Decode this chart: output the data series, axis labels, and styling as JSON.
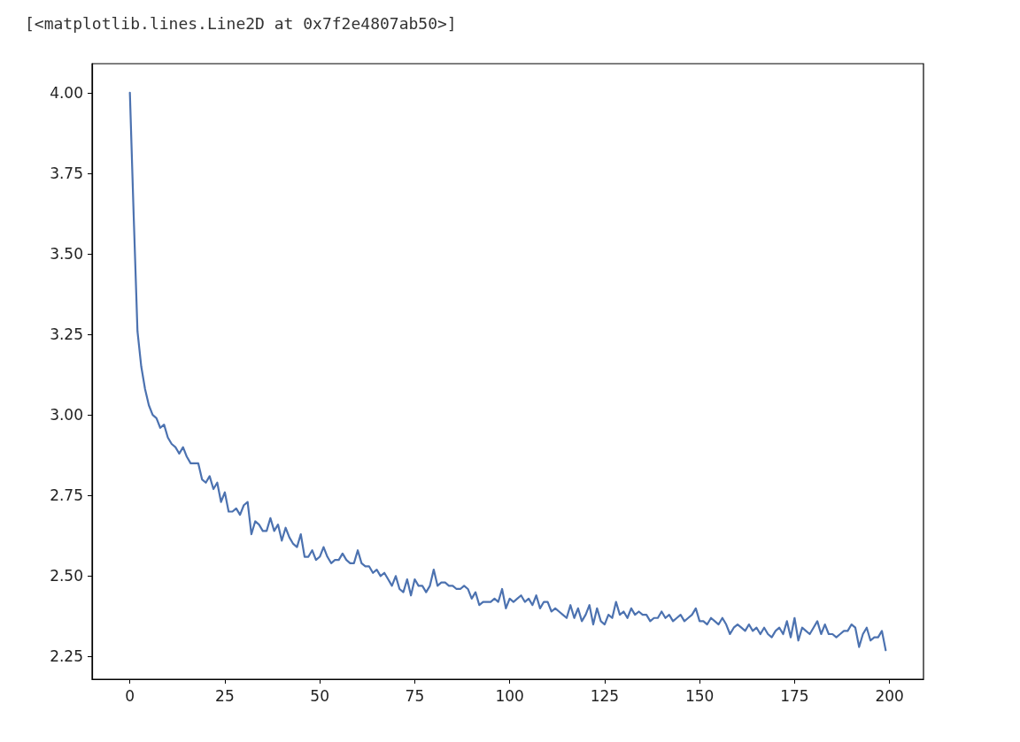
{
  "chart_data": {
    "type": "line",
    "annotations": [
      "[<matplotlib.lines.Line2D at 0x7f2e4807ab50>]"
    ],
    "x": [
      0,
      1,
      2,
      3,
      4,
      5,
      6,
      7,
      8,
      9,
      10,
      11,
      12,
      13,
      14,
      15,
      16,
      17,
      18,
      19,
      20,
      21,
      22,
      23,
      24,
      25,
      26,
      27,
      28,
      29,
      30,
      31,
      32,
      33,
      34,
      35,
      36,
      37,
      38,
      39,
      40,
      41,
      42,
      43,
      44,
      45,
      46,
      47,
      48,
      49,
      50,
      51,
      52,
      53,
      54,
      55,
      56,
      57,
      58,
      59,
      60,
      61,
      62,
      63,
      64,
      65,
      66,
      67,
      68,
      69,
      70,
      71,
      72,
      73,
      74,
      75,
      76,
      77,
      78,
      79,
      80,
      81,
      82,
      83,
      84,
      85,
      86,
      87,
      88,
      89,
      90,
      91,
      92,
      93,
      94,
      95,
      96,
      97,
      98,
      99,
      100,
      101,
      102,
      103,
      104,
      105,
      106,
      107,
      108,
      109,
      110,
      111,
      112,
      113,
      114,
      115,
      116,
      117,
      118,
      119,
      120,
      121,
      122,
      123,
      124,
      125,
      126,
      127,
      128,
      129,
      130,
      131,
      132,
      133,
      134,
      135,
      136,
      137,
      138,
      139,
      140,
      141,
      142,
      143,
      144,
      145,
      146,
      147,
      148,
      149,
      150,
      151,
      152,
      153,
      154,
      155,
      156,
      157,
      158,
      159,
      160,
      161,
      162,
      163,
      164,
      165,
      166,
      167,
      168,
      169,
      170,
      171,
      172,
      173,
      174,
      175,
      176,
      177,
      178,
      179,
      180,
      181,
      182,
      183,
      184,
      185,
      186,
      187,
      188,
      189,
      190,
      191,
      192,
      193,
      194,
      195,
      196,
      197,
      198,
      199
    ],
    "series": [
      {
        "color": "#4c72b0",
        "values": [
          4.0,
          3.62,
          3.26,
          3.15,
          3.08,
          3.03,
          3.0,
          2.99,
          2.96,
          2.97,
          2.93,
          2.91,
          2.9,
          2.88,
          2.9,
          2.87,
          2.85,
          2.85,
          2.85,
          2.8,
          2.79,
          2.81,
          2.77,
          2.79,
          2.73,
          2.76,
          2.7,
          2.7,
          2.71,
          2.69,
          2.72,
          2.73,
          2.63,
          2.67,
          2.66,
          2.64,
          2.64,
          2.68,
          2.64,
          2.66,
          2.61,
          2.65,
          2.62,
          2.6,
          2.59,
          2.63,
          2.56,
          2.56,
          2.58,
          2.55,
          2.56,
          2.59,
          2.56,
          2.54,
          2.55,
          2.55,
          2.57,
          2.55,
          2.54,
          2.54,
          2.58,
          2.54,
          2.53,
          2.53,
          2.51,
          2.52,
          2.5,
          2.51,
          2.49,
          2.47,
          2.5,
          2.46,
          2.45,
          2.49,
          2.44,
          2.49,
          2.47,
          2.47,
          2.45,
          2.47,
          2.52,
          2.47,
          2.48,
          2.48,
          2.47,
          2.47,
          2.46,
          2.46,
          2.47,
          2.46,
          2.43,
          2.45,
          2.41,
          2.42,
          2.42,
          2.42,
          2.43,
          2.42,
          2.46,
          2.4,
          2.43,
          2.42,
          2.43,
          2.44,
          2.42,
          2.43,
          2.41,
          2.44,
          2.4,
          2.42,
          2.42,
          2.39,
          2.4,
          2.39,
          2.38,
          2.37,
          2.41,
          2.37,
          2.4,
          2.36,
          2.38,
          2.41,
          2.35,
          2.4,
          2.36,
          2.35,
          2.38,
          2.37,
          2.42,
          2.38,
          2.39,
          2.37,
          2.4,
          2.38,
          2.39,
          2.38,
          2.38,
          2.36,
          2.37,
          2.37,
          2.39,
          2.37,
          2.38,
          2.36,
          2.37,
          2.38,
          2.36,
          2.37,
          2.38,
          2.4,
          2.36,
          2.36,
          2.35,
          2.37,
          2.36,
          2.35,
          2.37,
          2.35,
          2.32,
          2.34,
          2.35,
          2.34,
          2.33,
          2.35,
          2.33,
          2.34,
          2.32,
          2.34,
          2.32,
          2.31,
          2.33,
          2.34,
          2.32,
          2.36,
          2.31,
          2.37,
          2.3,
          2.34,
          2.33,
          2.32,
          2.34,
          2.36,
          2.32,
          2.35,
          2.32,
          2.32,
          2.31,
          2.32,
          2.33,
          2.33,
          2.35,
          2.34,
          2.28,
          2.32,
          2.34,
          2.3,
          2.31,
          2.31,
          2.33,
          2.27
        ]
      }
    ],
    "xlim": [
      -9.95,
      208.95
    ],
    "xticks": [
      0,
      25,
      50,
      75,
      100,
      125,
      150,
      175,
      200
    ],
    "ylim": [
      2.18,
      4.09
    ],
    "yticks": [
      {
        "value": 2.25,
        "label": "2.25"
      },
      {
        "value": 2.5,
        "label": "2.50"
      },
      {
        "value": 2.75,
        "label": "2.75"
      },
      {
        "value": 3,
        "label": "3.00"
      },
      {
        "value": 3.25,
        "label": "3.25"
      },
      {
        "value": 3.5,
        "label": "3.50"
      },
      {
        "value": 3.75,
        "label": "3.75"
      },
      {
        "value": 4,
        "label": "4.00"
      }
    ],
    "grid": false
  }
}
